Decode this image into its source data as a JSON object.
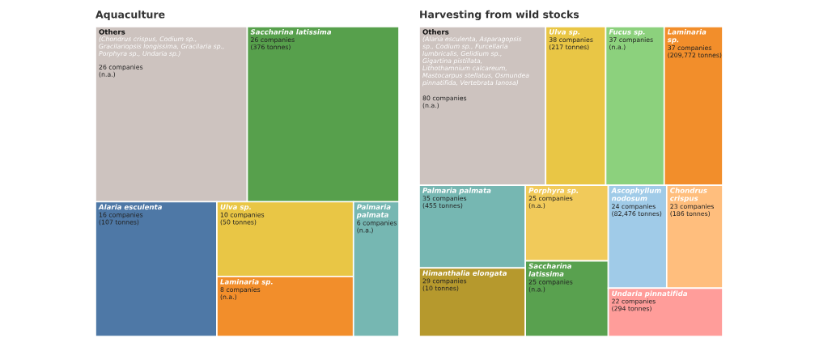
{
  "chart_data": [
    {
      "type": "other",
      "title": "Aquaculture",
      "categories": [
        "Others\n(Chondrus crispus, Codium sp.,\nGracilariopsis longissima, Gracilaria sp.,\nPorphyra sp., Undaria sp.)",
        "Saccharina latissima",
        "Alaria esculenta",
        "Ulva sp.",
        "Laminaria sp.",
        "Palmaria\npalmata"
      ],
      "values": [
        26,
        26,
        16,
        10,
        8,
        6
      ],
      "value_labels": [
        "26 companies\n(n.a.)",
        "26 companies\n(376 tonnes)",
        "16 companies\n(107 tonnes)",
        "10 companies\n(50 tonnes)",
        "8 companies\n(n.a.)",
        "6 companies\n(n.a.)"
      ],
      "colors": [
        "#cdc3bf",
        "#57a04c",
        "#4e78a6",
        "#e9c645",
        "#f28e2b",
        "#76b7b2"
      ]
    },
    {
      "type": "other",
      "title": "Harvesting from wild stocks",
      "categories": [
        "Others\n(Alaria esculenta, Asparagopsis\nsp., Codium sp., Furcellaria\nlumbricalis, Gelidium sp.,\nGigartina pistillata,\nLithothamnium calcareum,\nMastocarpus stellatus, Osmundea\npinnatifida, Vertebrata lanosa)",
        "Ulva sp.",
        "Fucus sp.",
        "Laminaria\nsp.",
        "Palmaria palmata",
        "Himanthalia elongata",
        "Porphyra sp.",
        "Saccharina\nlatissima",
        "Ascophyllum\nnodosum",
        "Chondrus\ncrispus",
        "Undaria pinnatifida"
      ],
      "values": [
        80,
        38,
        37,
        37,
        35,
        29,
        25,
        25,
        24,
        23,
        22
      ],
      "value_labels": [
        "80 companies\n(n.a.)",
        "38 companies\n(217 tonnes)",
        "37 companies\n(n.a.)",
        "37 companies\n(209,772 tonnes)",
        "35 companies\n(455 tonnes)",
        "29 companies\n(10 tonnes)",
        "25 companies\n(n.a.)",
        "25 companies\n(n.a.)",
        "24 companies\n(82,476 tonnes)",
        "23 companies\n(186 tonnes)",
        "22 companies\n(294 tonnes)"
      ],
      "colors": [
        "#cdc3bf",
        "#e9c645",
        "#8cd17d",
        "#f28e2b",
        "#76b7b2",
        "#b6992d",
        "#f1ca5a",
        "#59a14f",
        "#a0cbe8",
        "#ffbe7d",
        "#ff9d9a"
      ]
    }
  ]
}
